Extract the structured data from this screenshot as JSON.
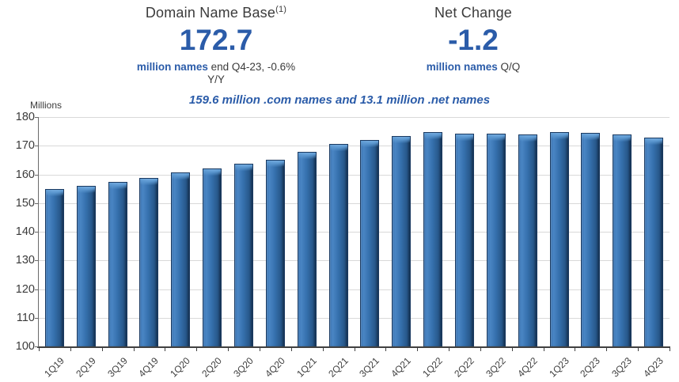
{
  "header": {
    "left": {
      "title": "Domain Name Base",
      "superscript": "(1)",
      "value": "172.7",
      "desc_bold": "million names",
      "desc_rest": "end Q4-23, -0.6%",
      "desc_line2": "Y/Y"
    },
    "right": {
      "title": "Net Change",
      "value": "-1.2",
      "desc_bold": "million names",
      "desc_rest": "Q/Q"
    }
  },
  "subtitle": "159.6 million .com names and 13.1 million .net names",
  "chart_data": {
    "type": "bar",
    "title": "",
    "xlabel": "",
    "ylabel": "Millions",
    "ylim": [
      100,
      180
    ],
    "ytick_step": 10,
    "grid": true,
    "legend": "none",
    "categories": [
      "1Q19",
      "2Q19",
      "3Q19",
      "4Q19",
      "1Q20",
      "2Q20",
      "3Q20",
      "4Q20",
      "1Q21",
      "2Q21",
      "3Q21",
      "4Q21",
      "1Q22",
      "2Q22",
      "3Q22",
      "4Q22",
      "1Q23",
      "2Q23",
      "3Q23",
      "4Q23"
    ],
    "values": [
      154.8,
      156.1,
      157.4,
      158.8,
      160.7,
      162.1,
      163.7,
      165.2,
      168.0,
      170.6,
      172.1,
      173.4,
      174.7,
      174.3,
      174.2,
      173.8,
      174.8,
      174.6,
      173.9,
      172.7
    ]
  },
  "colors": {
    "accent_blue": "#2b5ca9",
    "bar_fill": "#3570ad",
    "bar_highlight": "#5f9bd3",
    "bar_border": "#1b3a61",
    "gridline": "#d9d9d9",
    "axis": "#404040",
    "text": "#3b3b3b"
  }
}
